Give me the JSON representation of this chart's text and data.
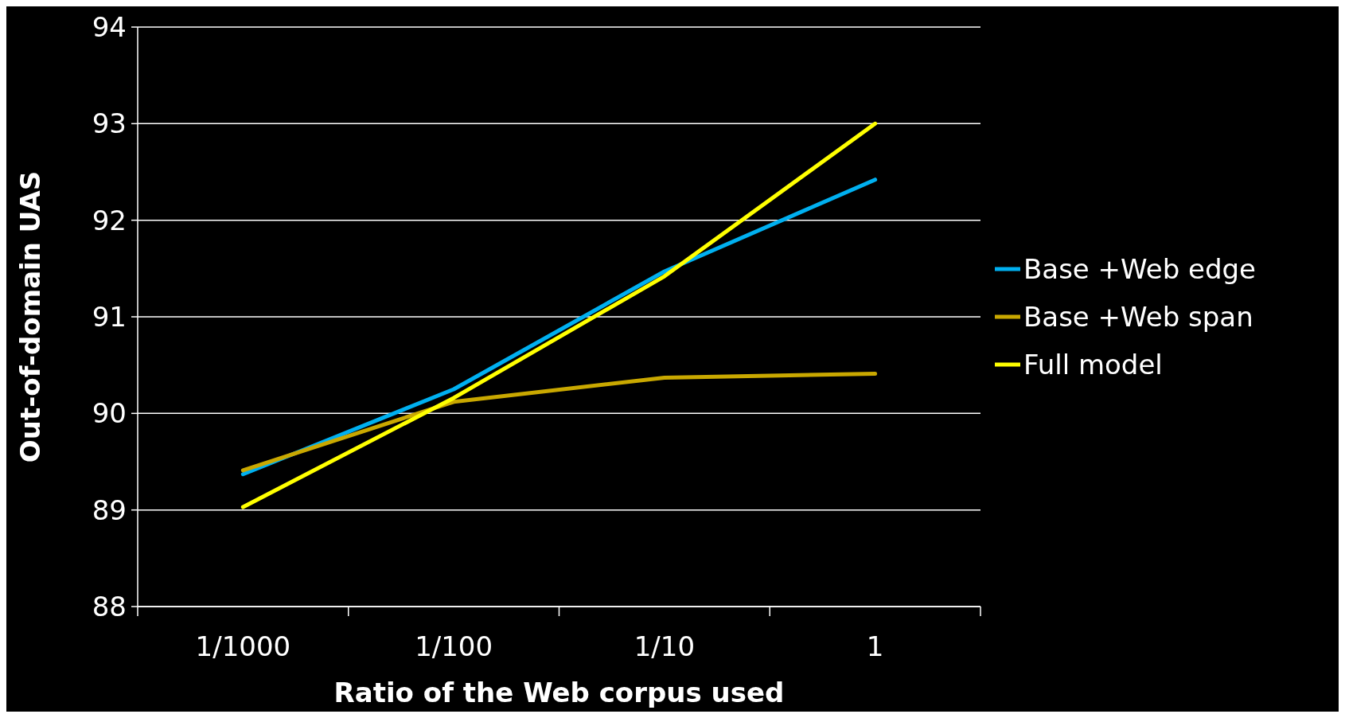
{
  "chart_data": {
    "type": "line",
    "xlabel": "Ratio of the Web corpus used",
    "ylabel": "Out-of-domain UAS",
    "categories": [
      "1/1000",
      "1/100",
      "1/10",
      "1"
    ],
    "series": [
      {
        "name": "Base +Web edge",
        "color": "#00b0f0",
        "values": [
          89.37,
          90.25,
          91.47,
          92.42
        ]
      },
      {
        "name": "Base +Web span",
        "color": "#c9a800",
        "values": [
          89.41,
          90.12,
          90.37,
          90.41
        ]
      },
      {
        "name": "Full model",
        "color": "#ffff00",
        "values": [
          89.03,
          90.16,
          91.42,
          93.0
        ]
      }
    ],
    "ylim": [
      88,
      94
    ],
    "yticks": [
      88,
      89,
      90,
      91,
      92,
      93,
      94
    ],
    "grid": "y",
    "legend": "right",
    "marker": "none",
    "line_style": "solid"
  }
}
